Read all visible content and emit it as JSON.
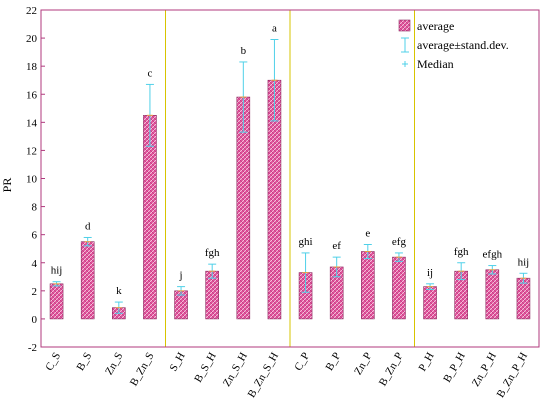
{
  "chart_data": {
    "type": "bar",
    "title": "",
    "xlabel": "",
    "ylabel": "PR",
    "ylim": [
      -2,
      22
    ],
    "yticks": [
      -2,
      0,
      2,
      4,
      6,
      8,
      10,
      12,
      14,
      16,
      18,
      20,
      22
    ],
    "grid": false,
    "legend_position": "top-right",
    "categories": [
      "C_S",
      "B_S",
      "Zn_S",
      "B_Zn_S",
      "S_H",
      "B_S_H",
      "Zn_S_H",
      "B_Zn_S_H",
      "C_P",
      "B_P",
      "Zn_P",
      "B_Zn_P",
      "P_H",
      "B_P_H",
      "Zn_P_H",
      "B_Zn_P_H"
    ],
    "series": [
      {
        "name": "average",
        "values": [
          2.5,
          5.5,
          0.8,
          14.5,
          2.0,
          3.4,
          15.8,
          17.0,
          3.3,
          3.7,
          4.8,
          4.4,
          2.3,
          3.4,
          3.5,
          2.9
        ]
      },
      {
        "name": "average±stand.dev.",
        "values": [
          0.15,
          0.3,
          0.4,
          2.2,
          0.3,
          0.5,
          2.5,
          2.9,
          1.4,
          0.7,
          0.5,
          0.3,
          0.2,
          0.6,
          0.3,
          0.35
        ]
      }
    ],
    "median_label": "Median",
    "significance_letters": [
      "hij",
      "d",
      "k",
      "c",
      "j",
      "fgh",
      "b",
      "a",
      "ghi",
      "ef",
      "e",
      "efg",
      "ij",
      "fgh",
      "efgh",
      "hij"
    ],
    "group_separators_after_index": [
      3,
      7,
      11
    ],
    "colors": {
      "frame": "#b03a7e",
      "bar_fill": "#e0509b",
      "bar_edge": "#8a2a60",
      "errorbar": "#4fd0e8",
      "separator": "#d7c400"
    }
  }
}
